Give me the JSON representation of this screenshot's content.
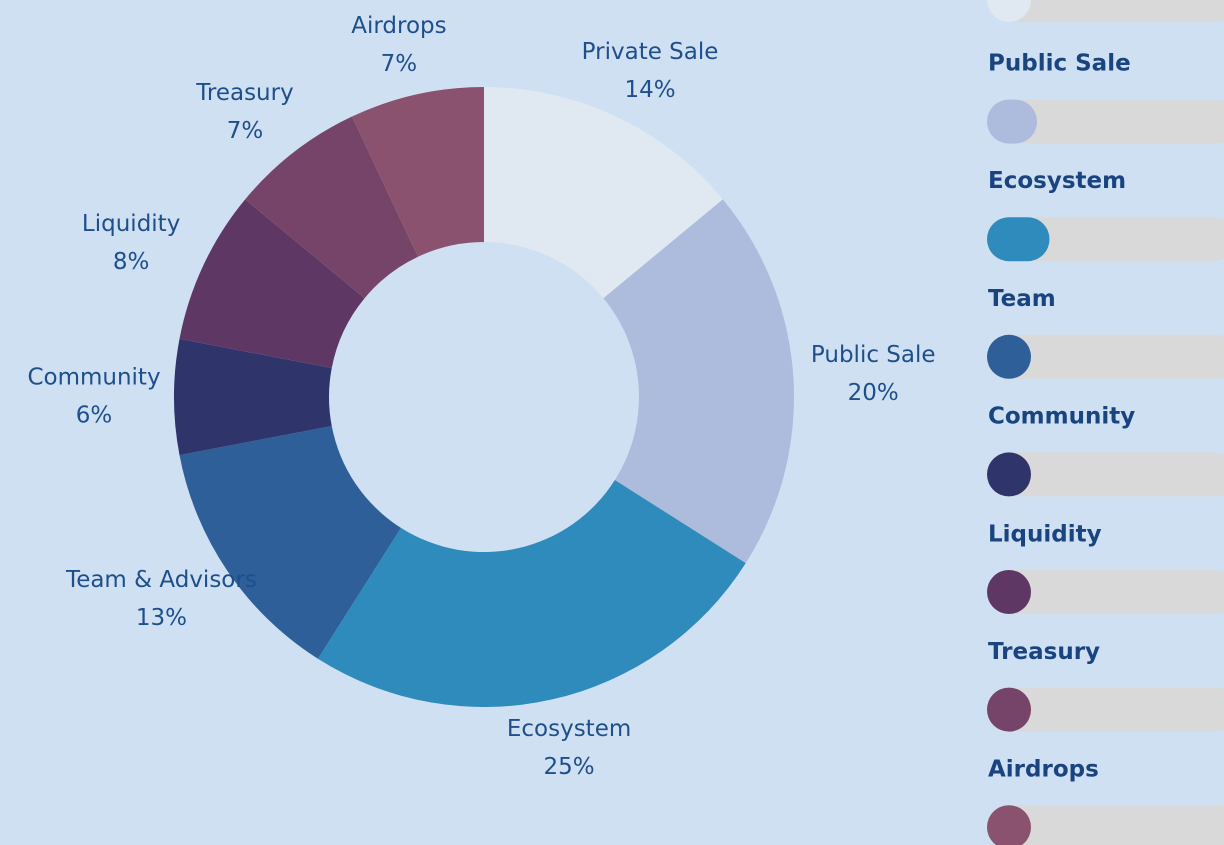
{
  "chart_data": {
    "type": "donut",
    "categories": [
      "Private Sale",
      "Public Sale",
      "Ecosystem",
      "Team & Advisors",
      "Community",
      "Liquidity",
      "Treasury",
      "Airdrops"
    ],
    "values": [
      14,
      20,
      25,
      13,
      6,
      8,
      7,
      7
    ],
    "value_labels": [
      "14%",
      "20%",
      "25%",
      "13%",
      "6%",
      "8%",
      "7%",
      "7%"
    ],
    "colors": [
      "#e0e8f2",
      "#adbbdd",
      "#2e8bbb",
      "#2e5f98",
      "#2f346b",
      "#5e3765",
      "#764468",
      "#8a526e"
    ]
  },
  "sidebar": {
    "labels": [
      "Public Sale",
      "Ecosystem",
      "Team",
      "Community",
      "Liquidity",
      "Treasury",
      "Airdrops"
    ]
  }
}
